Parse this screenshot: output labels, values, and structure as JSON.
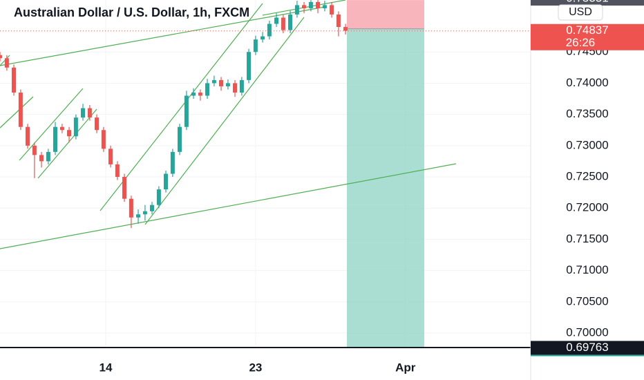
{
  "chart_data": {
    "type": "candlestick",
    "title": "Australian Dollar / U.S. Dollar, 1h, FXCM",
    "currency": "USD",
    "x": [
      7.65,
      8.06,
      8.48,
      8.89,
      9.31,
      9.72,
      10.14,
      10.55,
      10.97,
      11.38,
      11.8,
      12.21,
      12.63,
      13.04,
      13.46,
      13.87,
      14.29,
      14.7,
      15.12,
      15.53,
      15.95,
      16.36,
      16.78,
      17.19,
      17.61,
      18.02,
      18.44,
      18.85,
      19.27,
      19.68,
      20.1,
      20.51,
      20.93,
      21.34,
      21.76,
      22.17,
      22.59,
      23.0,
      23.42,
      23.83,
      24.25,
      24.66,
      25.08,
      25.49,
      25.91,
      26.32,
      26.74,
      27.15,
      27.57,
      27.98,
      28.4
    ],
    "open": [
      0.7445,
      0.744,
      0.7425,
      0.7385,
      0.733,
      0.73,
      0.7285,
      0.7275,
      0.729,
      0.733,
      0.7325,
      0.7315,
      0.7345,
      0.736,
      0.7345,
      0.7325,
      0.7295,
      0.727,
      0.725,
      0.7215,
      0.7185,
      0.719,
      0.7195,
      0.7205,
      0.723,
      0.7255,
      0.729,
      0.733,
      0.738,
      0.7385,
      0.738,
      0.74,
      0.7405,
      0.7395,
      0.74,
      0.7385,
      0.7405,
      0.745,
      0.747,
      0.7475,
      0.7495,
      0.7505,
      0.7485,
      0.751,
      0.7525,
      0.752,
      0.753,
      0.752,
      0.7525,
      0.751,
      0.749
    ],
    "high": [
      0.745,
      0.7445,
      0.743,
      0.739,
      0.7335,
      0.7305,
      0.729,
      0.7295,
      0.7338,
      0.7335,
      0.733,
      0.735,
      0.7367,
      0.7365,
      0.735,
      0.733,
      0.73,
      0.7275,
      0.7255,
      0.722,
      0.7198,
      0.7205,
      0.721,
      0.7235,
      0.726,
      0.7295,
      0.7335,
      0.7388,
      0.7392,
      0.739,
      0.7407,
      0.7412,
      0.741,
      0.7406,
      0.7405,
      0.741,
      0.7455,
      0.7476,
      0.7482,
      0.75,
      0.7512,
      0.751,
      0.7516,
      0.7532,
      0.753,
      0.7533,
      0.7533,
      0.7532,
      0.753,
      0.7515,
      0.7495
    ],
    "low": [
      0.7435,
      0.742,
      0.738,
      0.7325,
      0.7295,
      0.7248,
      0.7265,
      0.727,
      0.7285,
      0.732,
      0.7305,
      0.731,
      0.734,
      0.734,
      0.732,
      0.729,
      0.7265,
      0.7245,
      0.721,
      0.7168,
      0.7175,
      0.718,
      0.719,
      0.72,
      0.7225,
      0.725,
      0.7285,
      0.7325,
      0.7375,
      0.7372,
      0.7375,
      0.7395,
      0.7388,
      0.739,
      0.7378,
      0.738,
      0.74,
      0.7445,
      0.7465,
      0.747,
      0.749,
      0.748,
      0.748,
      0.7505,
      0.7512,
      0.7515,
      0.7512,
      0.7515,
      0.7505,
      0.7475,
      0.7478
    ],
    "close": [
      0.744,
      0.7425,
      0.7385,
      0.733,
      0.73,
      0.7285,
      0.7275,
      0.729,
      0.733,
      0.7325,
      0.7315,
      0.7345,
      0.736,
      0.7345,
      0.7325,
      0.7295,
      0.727,
      0.725,
      0.7215,
      0.7185,
      0.719,
      0.7195,
      0.7205,
      0.723,
      0.7255,
      0.729,
      0.733,
      0.738,
      0.7385,
      0.738,
      0.74,
      0.7405,
      0.7395,
      0.74,
      0.7385,
      0.7405,
      0.745,
      0.747,
      0.7475,
      0.7495,
      0.7505,
      0.7485,
      0.751,
      0.7525,
      0.752,
      0.753,
      0.752,
      0.7525,
      0.751,
      0.749,
      0.7484
    ],
    "up_color": "#26a69a",
    "down_color": "#ef5350",
    "xlim": [
      7.65,
      39.52
    ],
    "xticks": [
      14,
      23,
      {
        "value": 32,
        "label": "Apr"
      }
    ],
    "ylim": [
      0.69768,
      0.75332
    ],
    "yticks": [
      {
        "value": 0.7,
        "label": "0.70000"
      },
      {
        "value": 0.705,
        "label": "0.70500"
      },
      {
        "value": 0.71,
        "label": "0.71000"
      },
      {
        "value": 0.715,
        "label": "0.71500"
      },
      {
        "value": 0.72,
        "label": "0.72000"
      },
      {
        "value": 0.725,
        "label": "0.72500"
      },
      {
        "value": 0.73,
        "label": "0.73000"
      },
      {
        "value": 0.735,
        "label": "0.73500"
      },
      {
        "value": 0.74,
        "label": "0.74000"
      },
      {
        "value": 0.745,
        "label": "0.74500"
      }
    ],
    "grid": true,
    "last_price": 0.74837,
    "countdown": "26:26",
    "position": {
      "x": [
        28.48,
        33.13
      ],
      "stop": 0.75331,
      "entry": 0.7487,
      "target": 0.69763
    }
  }
}
